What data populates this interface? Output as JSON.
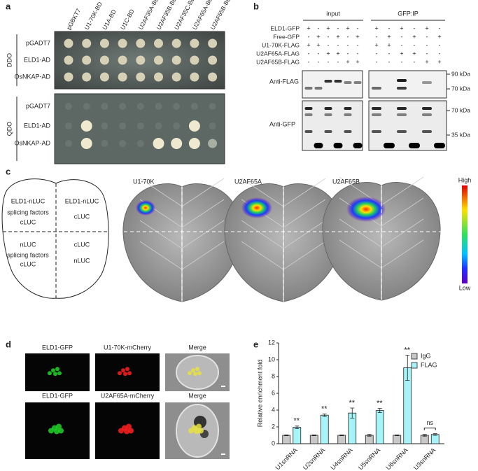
{
  "panel_labels": [
    "a",
    "b",
    "c",
    "d",
    "e"
  ],
  "panel_a": {
    "columns": [
      "pGBKT7",
      "U1-70K-BD",
      "U1A-BD",
      "U1C-BD",
      "U2AF35A-BD",
      "U2AF35B-BD",
      "U2AF35C-BD",
      "U2AF65A-BD",
      "U2AF65B-BD"
    ],
    "media": [
      "DDO",
      "QDO"
    ],
    "rows": [
      "pGADT7",
      "ELD1-AD",
      "OsNKAP-AD"
    ]
  },
  "panel_b": {
    "rows": [
      "ELD1-GFP",
      "Free-GFP",
      "U1-70K-FLAG",
      "U2AF65A-FLAG",
      "U2AF65B-FLAG"
    ],
    "groups": [
      {
        "name": "input",
        "lanes": [
          [
            "+",
            "-",
            "+",
            "-",
            "+",
            "-"
          ],
          [
            "-",
            "+",
            "-",
            "+",
            "-",
            "+"
          ],
          [
            "+",
            "+",
            "-",
            "-",
            "-",
            "-"
          ],
          [
            "-",
            "-",
            "+",
            "+",
            "-",
            "-"
          ],
          [
            "-",
            "-",
            "-",
            "-",
            "+",
            "+"
          ]
        ]
      },
      {
        "name": "GFP:IP",
        "lanes": [
          [
            "+",
            "-",
            "+",
            "-",
            "+",
            "-"
          ],
          [
            "-",
            "+",
            "-",
            "+",
            "-",
            "+"
          ],
          [
            "+",
            "+",
            "-",
            "-",
            "-",
            "-"
          ],
          [
            "-",
            "-",
            "+",
            "+",
            "-",
            "-"
          ],
          [
            "-",
            "-",
            "-",
            "-",
            "+",
            "+"
          ]
        ]
      }
    ],
    "blots": [
      "Anti-FLAG",
      "Anti-GFP"
    ],
    "markers": [
      "90 kDa",
      "70 kDa",
      "70 kDa",
      "35 kDa"
    ]
  },
  "panel_c": {
    "schematic": [
      "ELD1-nLUC",
      "splicing factors",
      "cLUC",
      "ELD1-nLUC",
      "cLUC",
      "nLUC",
      "splicing factors",
      "cLUC",
      "cLUC",
      "nLUC"
    ],
    "leaves": [
      "U1-70K",
      "U2AF65A",
      "U2AF65B"
    ],
    "scale": [
      "High",
      "Low"
    ]
  },
  "panel_d": {
    "rows": [
      [
        "ELD1-GFP",
        "U1-70K-mCherry",
        "Merge"
      ],
      [
        "ELD1-GFP",
        "U2AF65A-mCherry",
        "Merge"
      ]
    ]
  },
  "chart_data": {
    "type": "bar",
    "y_label": "Relative enrichment fold",
    "categories": [
      "U1snRNA",
      "U2snRNA",
      "U4snRNA",
      "U5snRNA",
      "U6snRNA",
      "U3snRNA"
    ],
    "series": [
      {
        "name": "IgG",
        "color": "#c8c8c8",
        "values": [
          1,
          1,
          1,
          1,
          1,
          1
        ],
        "errors": [
          0.05,
          0.05,
          0.05,
          0.1,
          0.05,
          0.1
        ]
      },
      {
        "name": "FLAG",
        "color": "#a6f4f7",
        "values": [
          1.95,
          3.4,
          3.65,
          3.95,
          9.05,
          1.1
        ],
        "errors": [
          0.15,
          0.15,
          0.6,
          0.25,
          1.5,
          0.1
        ]
      }
    ],
    "annotations": [
      "**",
      "**",
      "**",
      "**",
      "**",
      "ns"
    ],
    "ylim": [
      0,
      12
    ],
    "yticks": [
      0,
      2,
      4,
      6,
      8,
      10,
      12
    ],
    "legend": "upper right"
  }
}
